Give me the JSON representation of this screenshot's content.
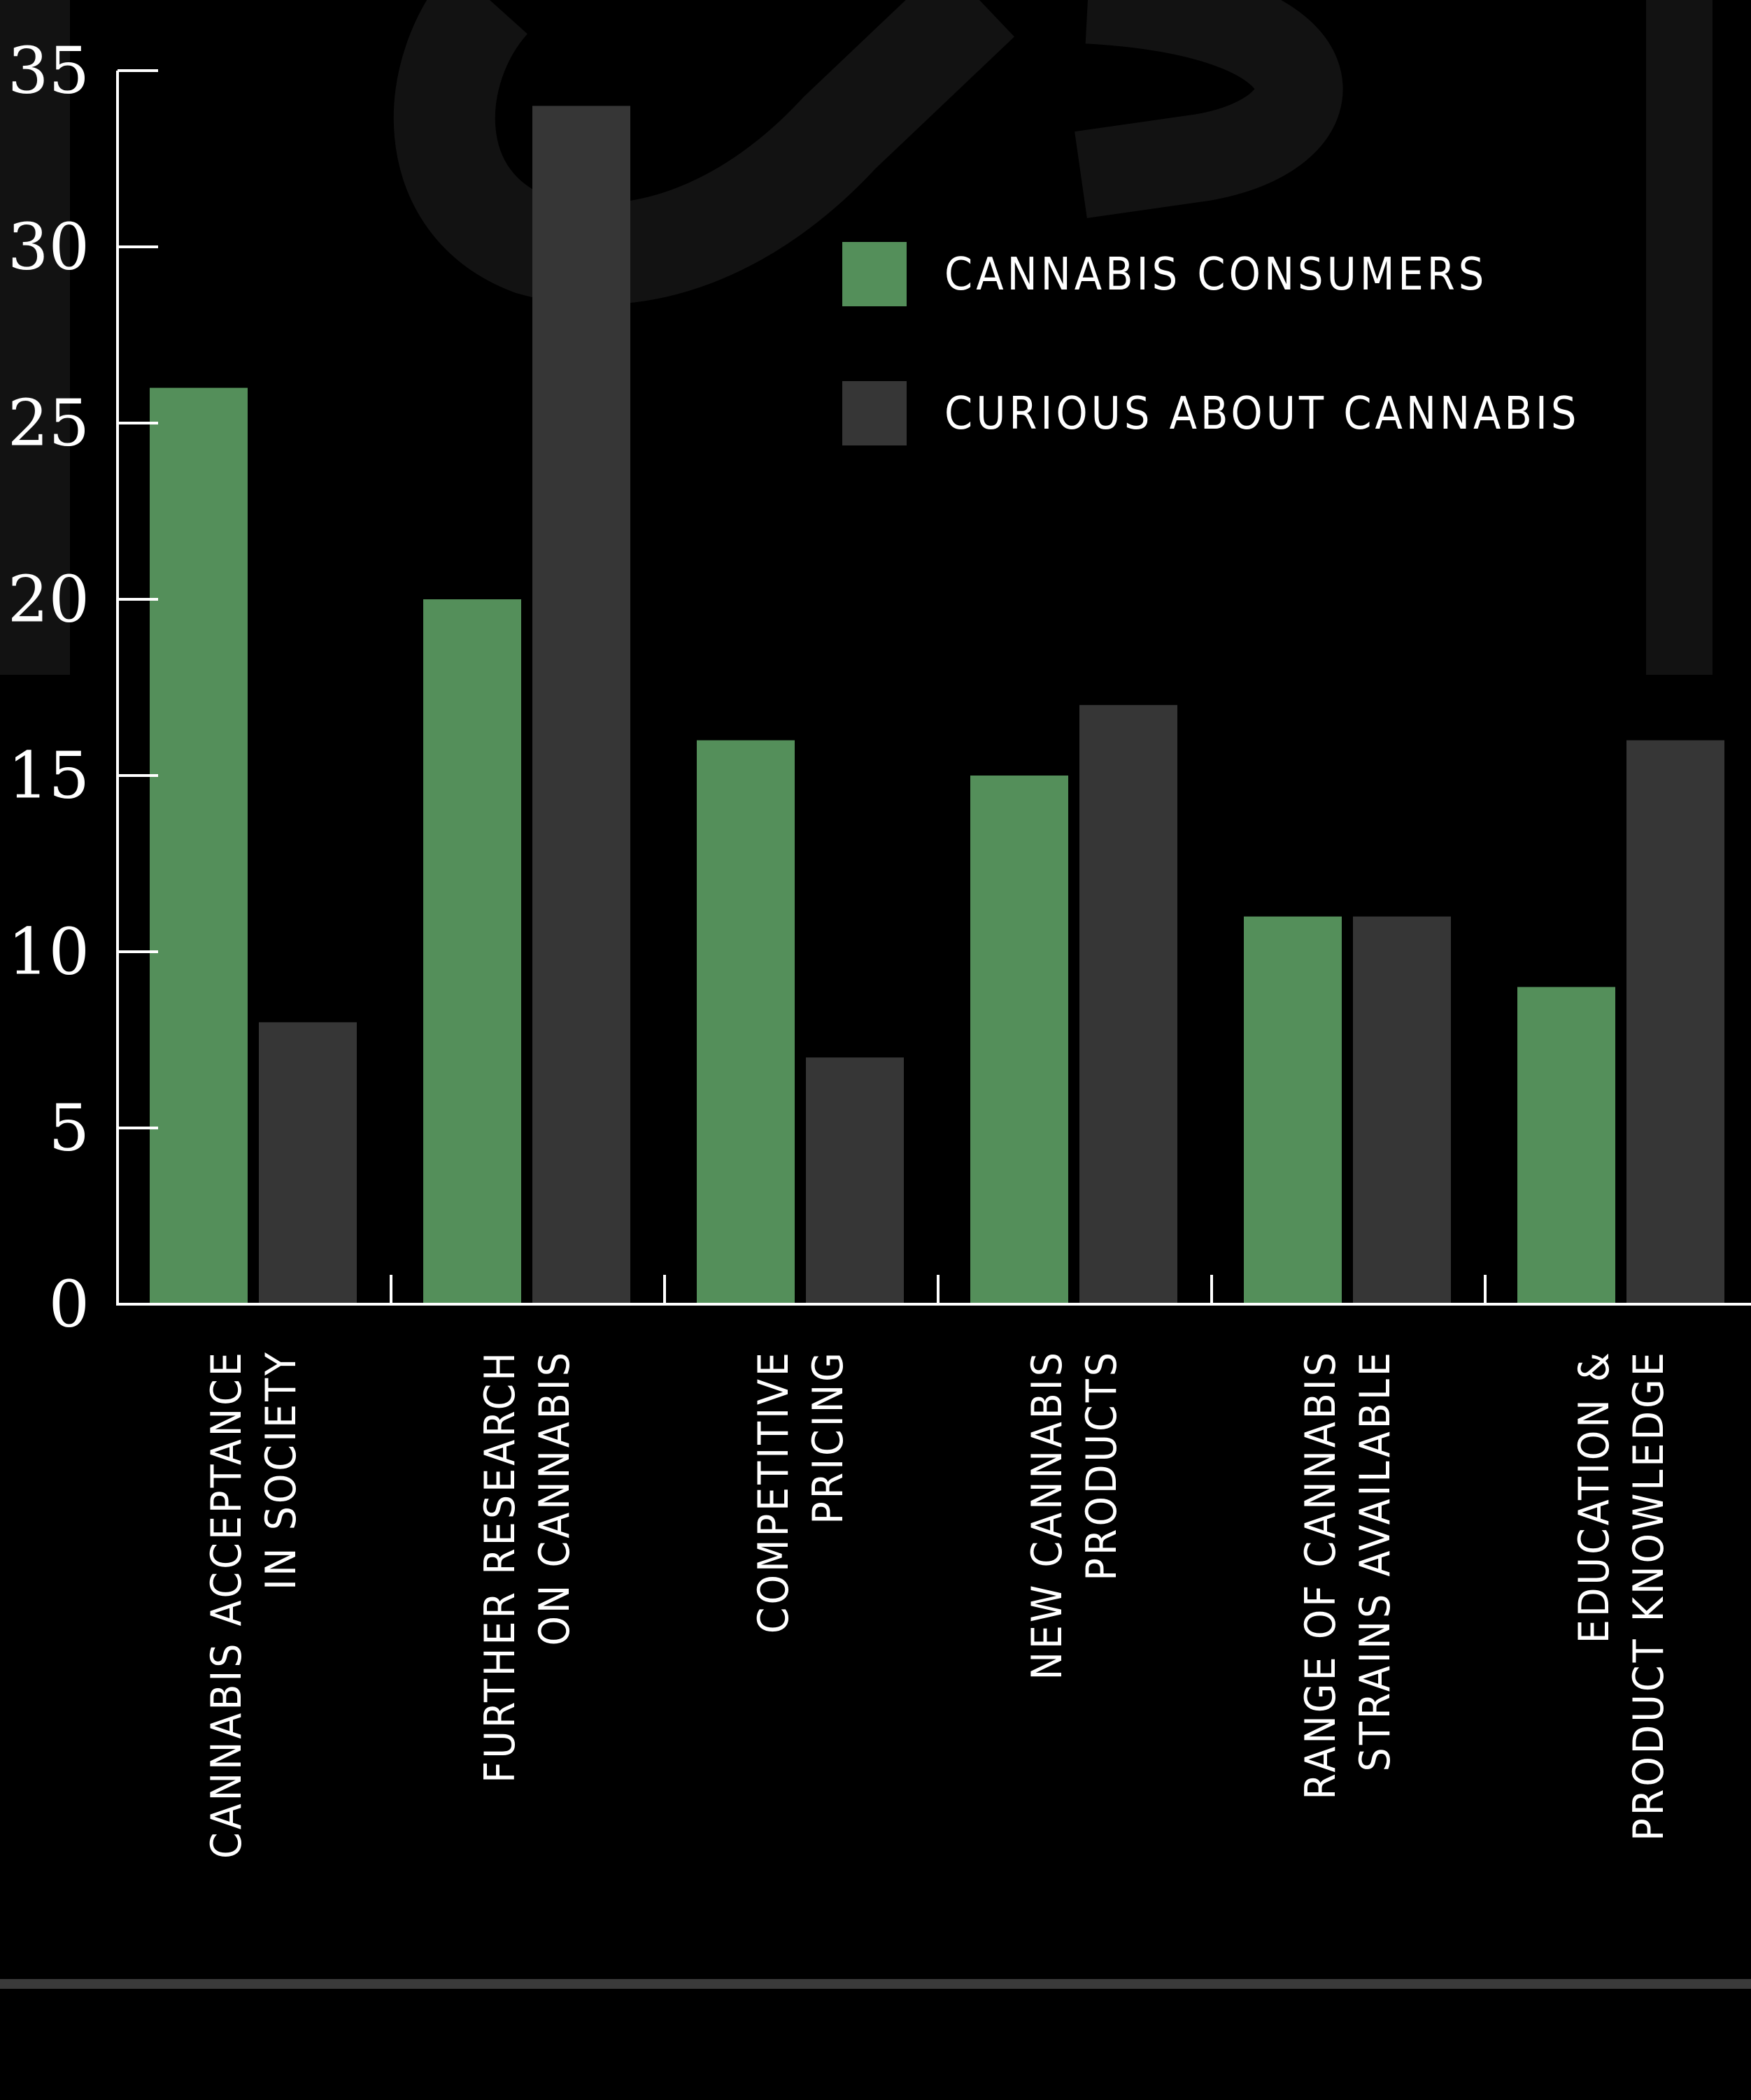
{
  "chart_data": {
    "type": "bar",
    "categories": [
      [
        "CANNABIS ACCEPTANCE",
        "IN SOCIETY"
      ],
      [
        "FURTHER RESEARCH",
        "ON CANNABIS"
      ],
      [
        "COMPETITIVE",
        "PRICING"
      ],
      [
        "NEW CANNABIS",
        "PRODUCTS"
      ],
      [
        "RANGE OF CANNABIS",
        "STRAINS AVAILABLE"
      ],
      [
        "EDUCATION &",
        "PRODUCT KNOWLEDGE"
      ]
    ],
    "series": [
      {
        "name": "CANNABIS CONSUMERS",
        "color": "#548f5a",
        "values": [
          26,
          20,
          16,
          15,
          11,
          9
        ]
      },
      {
        "name": "CURIOUS ABOUT CANNABIS",
        "color": "#363636",
        "values": [
          8,
          34,
          7,
          17,
          11,
          16
        ]
      }
    ],
    "yticks": [
      0,
      5,
      10,
      15,
      20,
      25,
      30,
      35
    ],
    "ylim": [
      0,
      35
    ],
    "xlabel": "",
    "ylabel": "",
    "grid": false,
    "legend_position": "top-center",
    "colors": {
      "background": "#000000",
      "axis": "#ffffff",
      "text": "#ffffff",
      "watermark": "#121212",
      "footer_rule": "#3a3a3a"
    }
  }
}
